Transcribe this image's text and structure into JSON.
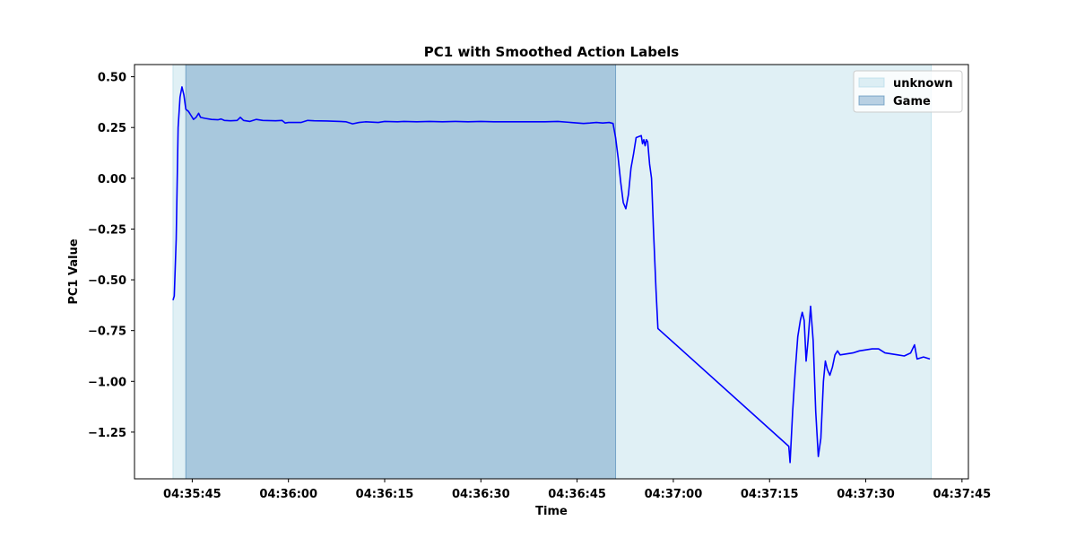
{
  "chart_data": {
    "type": "line",
    "title": "PC1 with Smoothed Action Labels",
    "xlabel": "Time",
    "ylabel": "PC1 Value",
    "x_is_time": true,
    "xlim": [
      "04:35:36",
      "04:37:46"
    ],
    "ylim": [
      -1.48,
      0.56
    ],
    "x_ticks": [
      "04:35:45",
      "04:36:00",
      "04:36:15",
      "04:36:30",
      "04:36:45",
      "04:37:00",
      "04:37:15",
      "04:37:30",
      "04:37:45"
    ],
    "y_ticks": [
      0.5,
      0.25,
      0.0,
      -0.25,
      -0.5,
      -0.75,
      -1.0,
      -1.25
    ],
    "y_tick_labels": [
      "0.50",
      "0.25",
      "0.00",
      "−0.25",
      "−0.50",
      "−0.75",
      "−1.00",
      "−1.25"
    ],
    "grid": false,
    "legend_position": "top-right",
    "regions": [
      {
        "label": "unknown",
        "start": "04:35:42.0",
        "end": "04:37:40.2",
        "color": "#add8e6",
        "opacity": 0.38
      },
      {
        "label": "Game",
        "start": "04:35:44.0",
        "end": "04:36:51.0",
        "color": "#4682b4",
        "opacity": 0.36
      }
    ],
    "series": [
      {
        "color": "#0000ff",
        "points": [
          [
            "04:35:42.0",
            -0.6
          ],
          [
            "04:35:42.2",
            -0.58
          ],
          [
            "04:35:42.5",
            -0.3
          ],
          [
            "04:35:42.8",
            0.25
          ],
          [
            "04:35:43.1",
            0.4
          ],
          [
            "04:35:43.4",
            0.45
          ],
          [
            "04:35:43.7",
            0.41
          ],
          [
            "04:35:44.0",
            0.34
          ],
          [
            "04:35:44.4",
            0.33
          ],
          [
            "04:35:44.8",
            0.31
          ],
          [
            "04:35:45.2",
            0.29
          ],
          [
            "04:35:45.6",
            0.3
          ],
          [
            "04:35:46.0",
            0.32
          ],
          [
            "04:35:46.3",
            0.3
          ],
          [
            "04:35:47.0",
            0.295
          ],
          [
            "04:35:48.0",
            0.29
          ],
          [
            "04:35:49.0",
            0.288
          ],
          [
            "04:35:49.5",
            0.292
          ],
          [
            "04:35:50.0",
            0.285
          ],
          [
            "04:35:51.0",
            0.283
          ],
          [
            "04:35:52.0",
            0.285
          ],
          [
            "04:35:52.5",
            0.3
          ],
          [
            "04:35:53.0",
            0.285
          ],
          [
            "04:35:54.0",
            0.28
          ],
          [
            "04:35:55.0",
            0.29
          ],
          [
            "04:35:56.0",
            0.285
          ],
          [
            "04:35:58.0",
            0.283
          ],
          [
            "04:35:59.0",
            0.285
          ],
          [
            "04:35:59.5",
            0.272
          ],
          [
            "04:36:00.0",
            0.275
          ],
          [
            "04:36:01.0",
            0.275
          ],
          [
            "04:36:02.0",
            0.275
          ],
          [
            "04:36:03.0",
            0.285
          ],
          [
            "04:36:04.0",
            0.283
          ],
          [
            "04:36:06.0",
            0.282
          ],
          [
            "04:36:08.0",
            0.28
          ],
          [
            "04:36:09.0",
            0.278
          ],
          [
            "04:36:10.0",
            0.268
          ],
          [
            "04:36:11.0",
            0.275
          ],
          [
            "04:36:12.0",
            0.278
          ],
          [
            "04:36:14.0",
            0.275
          ],
          [
            "04:36:15.0",
            0.28
          ],
          [
            "04:36:17.0",
            0.278
          ],
          [
            "04:36:18.0",
            0.28
          ],
          [
            "04:36:20.0",
            0.278
          ],
          [
            "04:36:22.0",
            0.28
          ],
          [
            "04:36:24.0",
            0.278
          ],
          [
            "04:36:26.0",
            0.28
          ],
          [
            "04:36:28.0",
            0.278
          ],
          [
            "04:36:30.0",
            0.28
          ],
          [
            "04:36:32.0",
            0.278
          ],
          [
            "04:36:34.0",
            0.278
          ],
          [
            "04:36:36.0",
            0.278
          ],
          [
            "04:36:38.0",
            0.278
          ],
          [
            "04:36:40.0",
            0.278
          ],
          [
            "04:36:42.0",
            0.28
          ],
          [
            "04:36:44.0",
            0.275
          ],
          [
            "04:36:46.0",
            0.27
          ],
          [
            "04:36:47.0",
            0.272
          ],
          [
            "04:36:48.0",
            0.275
          ],
          [
            "04:36:49.0",
            0.272
          ],
          [
            "04:36:50.0",
            0.275
          ],
          [
            "04:36:50.6",
            0.27
          ],
          [
            "04:36:51.0",
            0.2
          ],
          [
            "04:36:51.4",
            0.1
          ],
          [
            "04:36:51.8",
            -0.02
          ],
          [
            "04:36:52.2",
            -0.12
          ],
          [
            "04:36:52.6",
            -0.15
          ],
          [
            "04:36:53.0",
            -0.08
          ],
          [
            "04:36:53.4",
            0.05
          ],
          [
            "04:36:53.8",
            0.12
          ],
          [
            "04:36:54.2",
            0.2
          ],
          [
            "04:36:54.6",
            0.205
          ],
          [
            "04:36:55.0",
            0.21
          ],
          [
            "04:36:55.2",
            0.17
          ],
          [
            "04:36:55.4",
            0.19
          ],
          [
            "04:36:55.6",
            0.16
          ],
          [
            "04:36:55.8",
            0.19
          ],
          [
            "04:36:56.0",
            0.18
          ],
          [
            "04:36:56.3",
            0.07
          ],
          [
            "04:36:56.6",
            0.0
          ],
          [
            "04:36:56.9",
            -0.25
          ],
          [
            "04:36:57.1",
            -0.4
          ],
          [
            "04:36:57.3",
            -0.55
          ],
          [
            "04:36:57.6",
            -0.74
          ],
          [
            "04:37:18.0",
            -1.32
          ],
          [
            "04:37:18.2",
            -1.4
          ],
          [
            "04:37:18.6",
            -1.15
          ],
          [
            "04:37:19.0",
            -0.95
          ],
          [
            "04:37:19.4",
            -0.78
          ],
          [
            "04:37:19.8",
            -0.7
          ],
          [
            "04:37:20.1",
            -0.66
          ],
          [
            "04:37:20.4",
            -0.7
          ],
          [
            "04:37:20.7",
            -0.9
          ],
          [
            "04:37:21.0",
            -0.8
          ],
          [
            "04:37:21.4",
            -0.63
          ],
          [
            "04:37:21.8",
            -0.8
          ],
          [
            "04:37:22.2",
            -1.15
          ],
          [
            "04:37:22.6",
            -1.37
          ],
          [
            "04:37:23.0",
            -1.28
          ],
          [
            "04:37:23.4",
            -1.0
          ],
          [
            "04:37:23.7",
            -0.9
          ],
          [
            "04:37:24.0",
            -0.94
          ],
          [
            "04:37:24.4",
            -0.97
          ],
          [
            "04:37:24.8",
            -0.93
          ],
          [
            "04:37:25.2",
            -0.87
          ],
          [
            "04:37:25.6",
            -0.85
          ],
          [
            "04:37:26.0",
            -0.87
          ],
          [
            "04:37:27.0",
            -0.865
          ],
          [
            "04:37:28.0",
            -0.86
          ],
          [
            "04:37:29.0",
            -0.85
          ],
          [
            "04:37:30.0",
            -0.845
          ],
          [
            "04:37:31.0",
            -0.84
          ],
          [
            "04:37:32.0",
            -0.84
          ],
          [
            "04:37:33.0",
            -0.86
          ],
          [
            "04:37:34.0",
            -0.865
          ],
          [
            "04:37:35.0",
            -0.87
          ],
          [
            "04:37:36.0",
            -0.875
          ],
          [
            "04:37:37.0",
            -0.86
          ],
          [
            "04:37:37.6",
            -0.82
          ],
          [
            "04:37:38.0",
            -0.89
          ],
          [
            "04:37:38.5",
            -0.885
          ],
          [
            "04:37:39.0",
            -0.88
          ],
          [
            "04:37:40.0",
            -0.89
          ]
        ]
      }
    ]
  }
}
